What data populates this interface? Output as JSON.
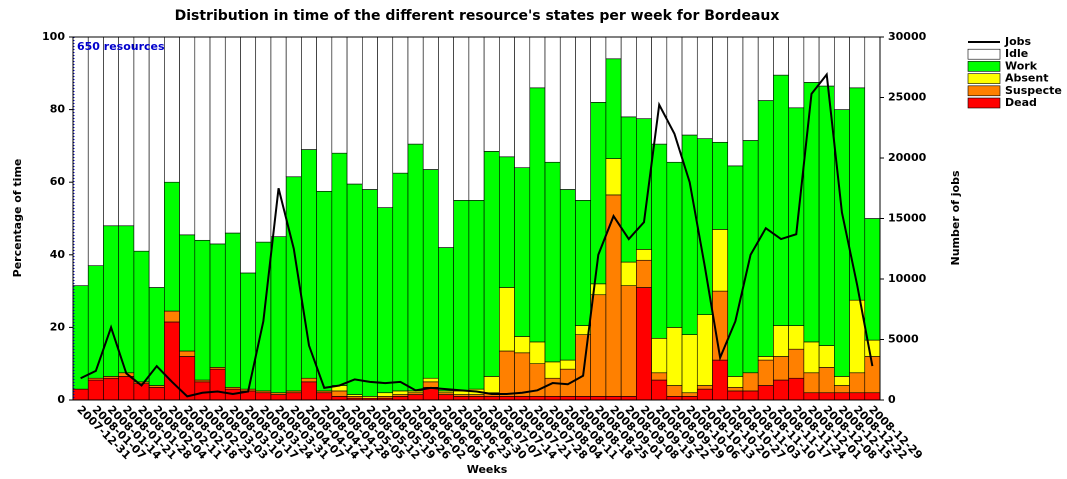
{
  "chart_data": {
    "type": "bar",
    "stacked": true,
    "title": "Distribution in time of the different resource's states per week for Bordeaux",
    "xlabel": "Weeks",
    "ylabel": "Percentage of time",
    "y2label": "Number of jobs",
    "annotation": "650 resources",
    "categories": [
      "2007-12-31",
      "2008-01-07",
      "2008-01-14",
      "2008-01-21",
      "2008-01-28",
      "2008-02-04",
      "2008-02-11",
      "2008-02-18",
      "2008-02-25",
      "2008-03-03",
      "2008-03-10",
      "2008-03-17",
      "2008-03-24",
      "2008-03-31",
      "2008-04-07",
      "2008-04-14",
      "2008-04-21",
      "2008-04-28",
      "2008-05-05",
      "2008-05-12",
      "2008-05-19",
      "2008-05-26",
      "2008-06-02",
      "2008-06-09",
      "2008-06-16",
      "2008-06-23",
      "2008-06-30",
      "2008-07-07",
      "2008-07-14",
      "2008-07-21",
      "2008-07-28",
      "2008-08-04",
      "2008-08-11",
      "2008-08-18",
      "2008-08-25",
      "2008-09-01",
      "2008-09-08",
      "2008-09-15",
      "2008-09-22",
      "2008-09-29",
      "2008-10-06",
      "2008-10-13",
      "2008-10-20",
      "2008-10-27",
      "2008-11-03",
      "2008-11-10",
      "2008-11-17",
      "2008-11-24",
      "2008-12-01",
      "2008-12-08",
      "2008-12-15",
      "2008-12-22",
      "2008-12-29"
    ],
    "series": [
      {
        "name": "Dead",
        "color": "#ff0000",
        "values": [
          3,
          5.5,
          6,
          6.5,
          4.5,
          3.5,
          21.5,
          12,
          5,
          8.5,
          3,
          2.5,
          2,
          1.5,
          2,
          5,
          2,
          1,
          0.5,
          0.5,
          0.5,
          1,
          1.5,
          3.5,
          1.5,
          1,
          1,
          1,
          1,
          1,
          1,
          1,
          1,
          1,
          1,
          1,
          1,
          31,
          5.5,
          1,
          1,
          3,
          11,
          2.5,
          2.5,
          4,
          5.5,
          6,
          2,
          2,
          2,
          2,
          2
        ]
      },
      {
        "name": "Suspecte",
        "color": "#ff8000",
        "values": [
          0,
          0.5,
          0.5,
          1,
          0.5,
          0.5,
          3,
          1.5,
          0.5,
          0.5,
          0.5,
          0.5,
          0.5,
          0.5,
          0.5,
          1,
          0.5,
          1.5,
          0.5,
          0,
          0.5,
          0.5,
          0.5,
          1.5,
          0.5,
          0.5,
          0.5,
          1,
          12.5,
          12,
          9,
          5,
          7.5,
          17,
          28,
          55.5,
          30.5,
          7.5,
          2,
          3,
          1,
          1,
          19,
          1,
          5,
          7,
          6.5,
          8,
          5.5,
          7,
          2,
          5.5,
          10
        ]
      },
      {
        "name": "Absent",
        "color": "#ffff00",
        "values": [
          0,
          0,
          0,
          0,
          0,
          0,
          0,
          0,
          0,
          0,
          0,
          0,
          0,
          0,
          0,
          0,
          0,
          1.5,
          0.5,
          0.5,
          1,
          1,
          0.5,
          1,
          0.5,
          1,
          1.5,
          4.5,
          17.5,
          4.5,
          6,
          4.5,
          2.5,
          2.5,
          3,
          10,
          6.5,
          3,
          9.5,
          16,
          16,
          19.5,
          17,
          3,
          0,
          1,
          8.5,
          6.5,
          8.5,
          6,
          2.5,
          20,
          4.5
        ]
      },
      {
        "name": "Work",
        "color": "#00ff00",
        "values": [
          28.5,
          31,
          41.5,
          40.5,
          36,
          27,
          35.5,
          32,
          38.5,
          34,
          42.5,
          32,
          41,
          43,
          59,
          63,
          55,
          64,
          58,
          57,
          51,
          60,
          68,
          57.5,
          39.5,
          52.5,
          52,
          62,
          36,
          46.5,
          70,
          55,
          47,
          34.5,
          50,
          27.5,
          40,
          36,
          53.5,
          45.5,
          55,
          48.5,
          24,
          58,
          64,
          70.5,
          69,
          60,
          71.5,
          71.5,
          73.5,
          58.5,
          33.5
        ]
      },
      {
        "name": "Idle",
        "color": "#ffffff",
        "values": [
          68.5,
          63,
          52,
          52,
          59,
          69,
          40,
          54.5,
          56,
          57,
          54,
          65,
          56.5,
          55,
          38.5,
          31,
          42.5,
          32,
          40.5,
          42,
          47,
          37.5,
          29.5,
          36.5,
          58,
          45,
          45,
          31.5,
          33,
          36,
          14,
          34.5,
          42,
          45,
          18,
          6,
          22,
          22.5,
          29.5,
          34.5,
          27,
          28,
          29,
          35.5,
          28.5,
          17.5,
          10.5,
          19.5,
          12.5,
          13.5,
          20,
          14,
          50
        ]
      },
      {
        "name": "Jobs",
        "color": "#000000",
        "type": "line",
        "axis": "y2",
        "values": [
          1800,
          2400,
          6000,
          2200,
          1200,
          2800,
          1500,
          300,
          600,
          700,
          500,
          700,
          6500,
          17500,
          12500,
          4500,
          1000,
          1200,
          1700,
          1500,
          1400,
          1500,
          800,
          1000,
          900,
          800,
          700,
          500,
          500,
          600,
          800,
          1400,
          1300,
          2000,
          12000,
          15200,
          13300,
          14700,
          24400,
          22000,
          18000,
          11000,
          3500,
          6500,
          12000,
          14200,
          13300,
          13700,
          25300,
          26900,
          15500,
          9500,
          2800
        ]
      }
    ],
    "ylim": [
      0,
      100
    ],
    "yticks": [
      0,
      20,
      40,
      60,
      80,
      100
    ],
    "y2lim": [
      0,
      30000
    ],
    "y2ticks": [
      0,
      5000,
      10000,
      15000,
      20000,
      25000,
      30000
    ],
    "grid": false,
    "legend": "right"
  }
}
